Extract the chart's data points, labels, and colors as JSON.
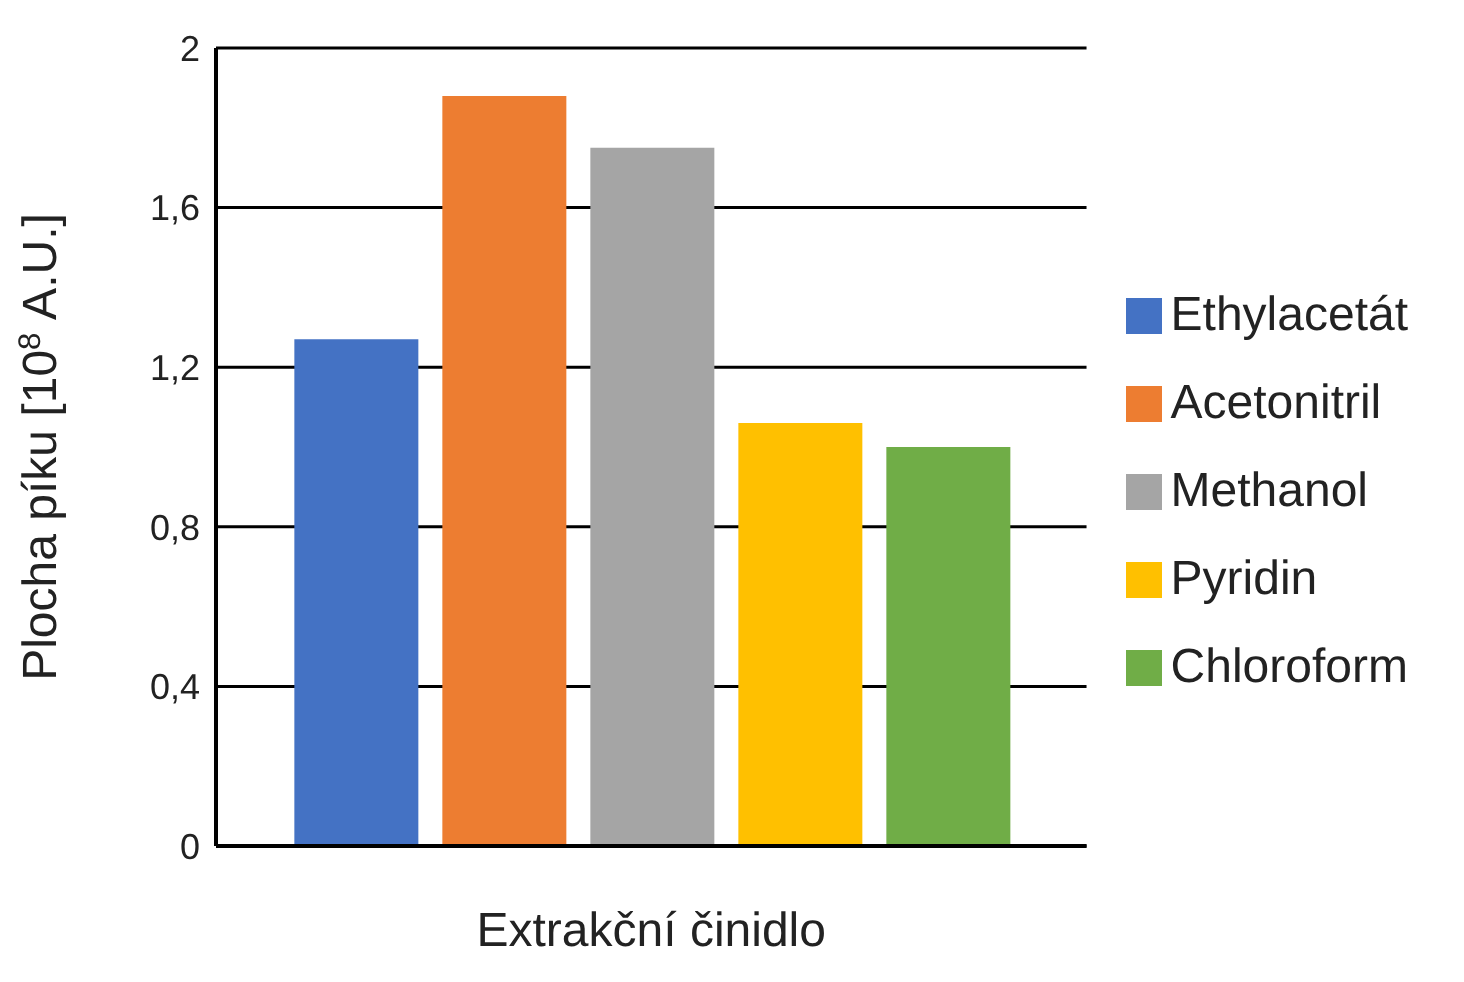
{
  "chart_data": {
    "type": "bar",
    "xlabel": "Extrakční činidlo",
    "ylabel": "Plocha píku [10$^{8}$ A.U.]",
    "categories": [
      null
    ],
    "series": [
      {
        "name": "Ethylacetát",
        "color": "#4472c4",
        "values": [
          1.27
        ]
      },
      {
        "name": "Acetonitril",
        "color": "#ed7d31",
        "values": [
          1.88
        ]
      },
      {
        "name": "Methanol",
        "color": "#a5a5a5",
        "values": [
          1.75
        ]
      },
      {
        "name": "Pyridin",
        "color": "#ffc000",
        "values": [
          1.06
        ]
      },
      {
        "name": "Chloroform",
        "color": "#70ad47",
        "values": [
          1.0
        ]
      }
    ],
    "ylim": [
      0,
      2
    ],
    "yticks": [
      0,
      {
        "value": 0.4,
        "label": "0,4"
      },
      {
        "value": 0.8,
        "label": "0,8"
      },
      {
        "value": 1.2,
        "label": "1,2"
      },
      {
        "value": 1.6,
        "label": "1,6"
      },
      2
    ],
    "grid": "y",
    "legend": "right",
    "tick_labels": "y"
  }
}
